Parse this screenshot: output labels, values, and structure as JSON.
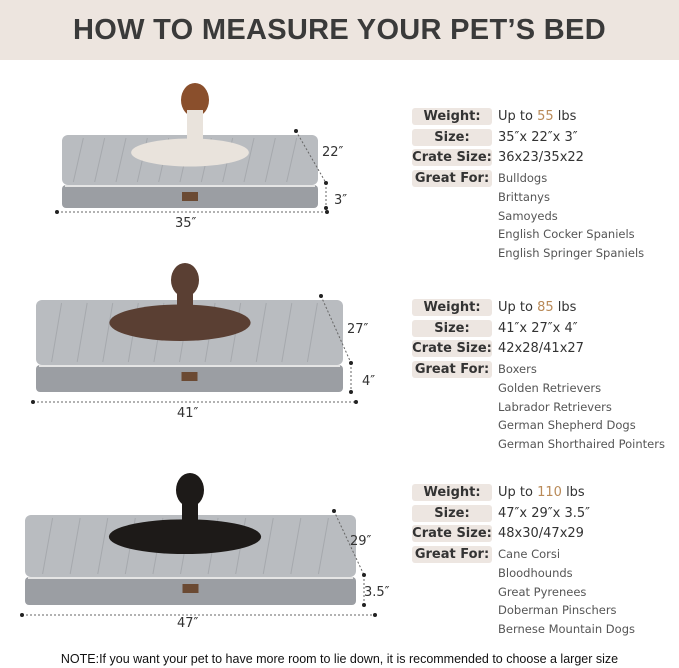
{
  "title": "HOW TO MEASURE YOUR PET’S BED",
  "labels": {
    "weight": "Weight:",
    "size": "Size:",
    "crate": "Crate Size:",
    "great_for": "Great For:"
  },
  "weight_prefix": "Up to",
  "weight_unit": "lbs",
  "accent_color": "#b98a58",
  "beds": [
    {
      "weight": "55",
      "size": "35″x 22″x 3″",
      "crate": "36x23/35x22",
      "breeds": [
        "Bulldogs",
        "Brittanys",
        "Samoyeds",
        "English Cocker Spaniels",
        "English Springer Spaniels"
      ],
      "length": "35″",
      "width": "22″",
      "height": "3″"
    },
    {
      "weight": "85",
      "size": "41″x 27″x 4″",
      "crate": "42x28/41x27",
      "breeds": [
        "Boxers",
        "Golden Retrievers",
        "Labrador Retrievers",
        "German Shepherd Dogs",
        "German Shorthaired Pointers"
      ],
      "length": "41″",
      "width": "27″",
      "height": "4″"
    },
    {
      "weight": "110",
      "size": "47″x 29″x 3.5″",
      "crate": "48x30/47x29",
      "breeds": [
        "Cane Corsi",
        "Bloodhounds",
        "Great Pyrenees",
        "Doberman Pinschers",
        "Bernese Mountain Dogs"
      ],
      "length": "47″",
      "width": "29″",
      "height": "3.5″"
    }
  ],
  "note": "NOTE:If you want your pet to have more room to lie down, it is recommended to choose a larger size"
}
